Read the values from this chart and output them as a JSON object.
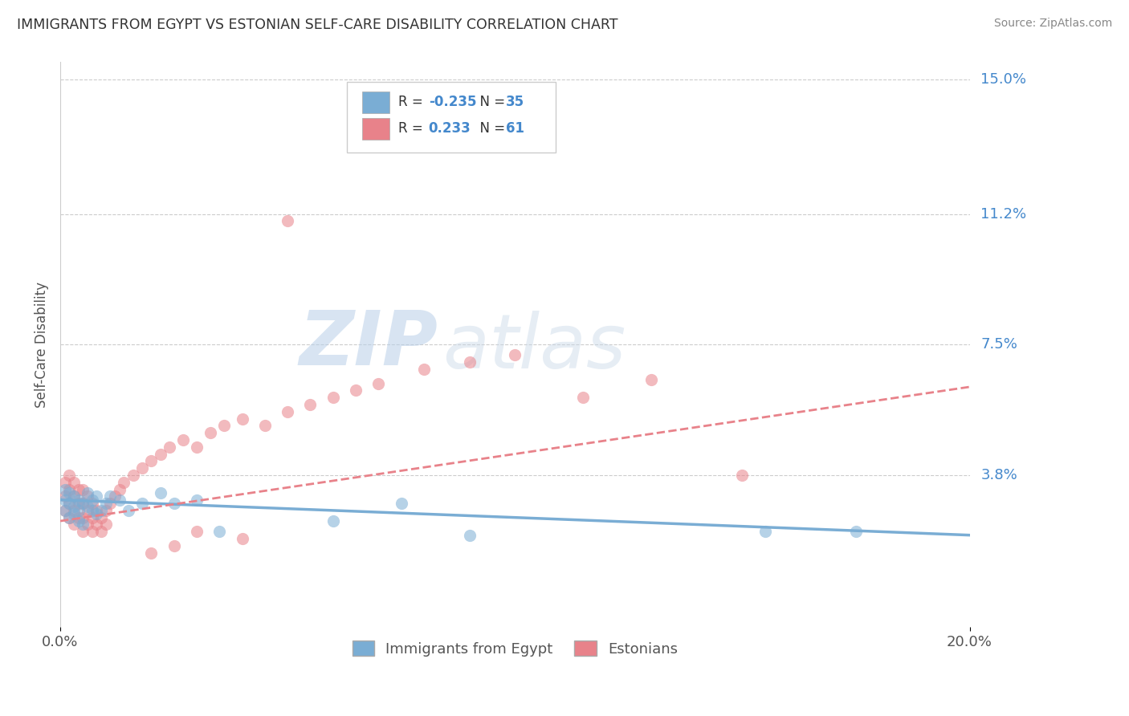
{
  "title": "IMMIGRANTS FROM EGYPT VS ESTONIAN SELF-CARE DISABILITY CORRELATION CHART",
  "source": "Source: ZipAtlas.com",
  "ylabel": "Self-Care Disability",
  "xlim": [
    0.0,
    0.2
  ],
  "ylim": [
    -0.005,
    0.155
  ],
  "ytick_labels": [
    "15.0%",
    "11.2%",
    "7.5%",
    "3.8%"
  ],
  "ytick_values": [
    0.15,
    0.112,
    0.075,
    0.038
  ],
  "grid_color": "#cccccc",
  "background_color": "#ffffff",
  "blue_color": "#7aadd4",
  "pink_color": "#e8828a",
  "legend_label1": "Immigrants from Egypt",
  "legend_label2": "Estonians",
  "r1": "-0.235",
  "n1": "35",
  "r2": "0.233",
  "n2": "61",
  "blue_scatter_x": [
    0.001,
    0.001,
    0.001,
    0.002,
    0.002,
    0.002,
    0.003,
    0.003,
    0.003,
    0.004,
    0.004,
    0.004,
    0.005,
    0.005,
    0.006,
    0.006,
    0.007,
    0.007,
    0.008,
    0.008,
    0.009,
    0.01,
    0.011,
    0.013,
    0.015,
    0.018,
    0.022,
    0.025,
    0.03,
    0.035,
    0.06,
    0.075,
    0.09,
    0.155,
    0.175
  ],
  "blue_scatter_y": [
    0.031,
    0.028,
    0.034,
    0.03,
    0.026,
    0.033,
    0.029,
    0.032,
    0.027,
    0.031,
    0.025,
    0.028,
    0.03,
    0.024,
    0.029,
    0.033,
    0.028,
    0.031,
    0.027,
    0.032,
    0.028,
    0.03,
    0.032,
    0.031,
    0.028,
    0.03,
    0.033,
    0.03,
    0.031,
    0.022,
    0.025,
    0.03,
    0.021,
    0.022,
    0.022
  ],
  "pink_scatter_x": [
    0.001,
    0.001,
    0.001,
    0.002,
    0.002,
    0.002,
    0.002,
    0.003,
    0.003,
    0.003,
    0.003,
    0.004,
    0.004,
    0.004,
    0.005,
    0.005,
    0.005,
    0.005,
    0.006,
    0.006,
    0.006,
    0.007,
    0.007,
    0.007,
    0.008,
    0.008,
    0.009,
    0.009,
    0.01,
    0.01,
    0.011,
    0.012,
    0.013,
    0.014,
    0.016,
    0.018,
    0.02,
    0.022,
    0.024,
    0.027,
    0.03,
    0.033,
    0.036,
    0.04,
    0.045,
    0.05,
    0.055,
    0.06,
    0.065,
    0.07,
    0.08,
    0.09,
    0.1,
    0.115,
    0.13,
    0.05,
    0.03,
    0.025,
    0.02,
    0.04,
    0.15
  ],
  "pink_scatter_y": [
    0.028,
    0.032,
    0.036,
    0.026,
    0.03,
    0.034,
    0.038,
    0.024,
    0.028,
    0.032,
    0.036,
    0.026,
    0.03,
    0.034,
    0.022,
    0.026,
    0.03,
    0.034,
    0.024,
    0.028,
    0.032,
    0.022,
    0.026,
    0.03,
    0.024,
    0.028,
    0.022,
    0.026,
    0.024,
    0.028,
    0.03,
    0.032,
    0.034,
    0.036,
    0.038,
    0.04,
    0.042,
    0.044,
    0.046,
    0.048,
    0.046,
    0.05,
    0.052,
    0.054,
    0.052,
    0.056,
    0.058,
    0.06,
    0.062,
    0.064,
    0.068,
    0.07,
    0.072,
    0.06,
    0.065,
    0.11,
    0.022,
    0.018,
    0.016,
    0.02,
    0.038
  ],
  "watermark_zip": "ZIP",
  "watermark_atlas": "atlas",
  "blue_line_x": [
    0.0,
    0.2
  ],
  "blue_line_y": [
    0.031,
    0.021
  ],
  "pink_line_x": [
    0.0,
    0.2
  ],
  "pink_line_y": [
    0.025,
    0.063
  ]
}
